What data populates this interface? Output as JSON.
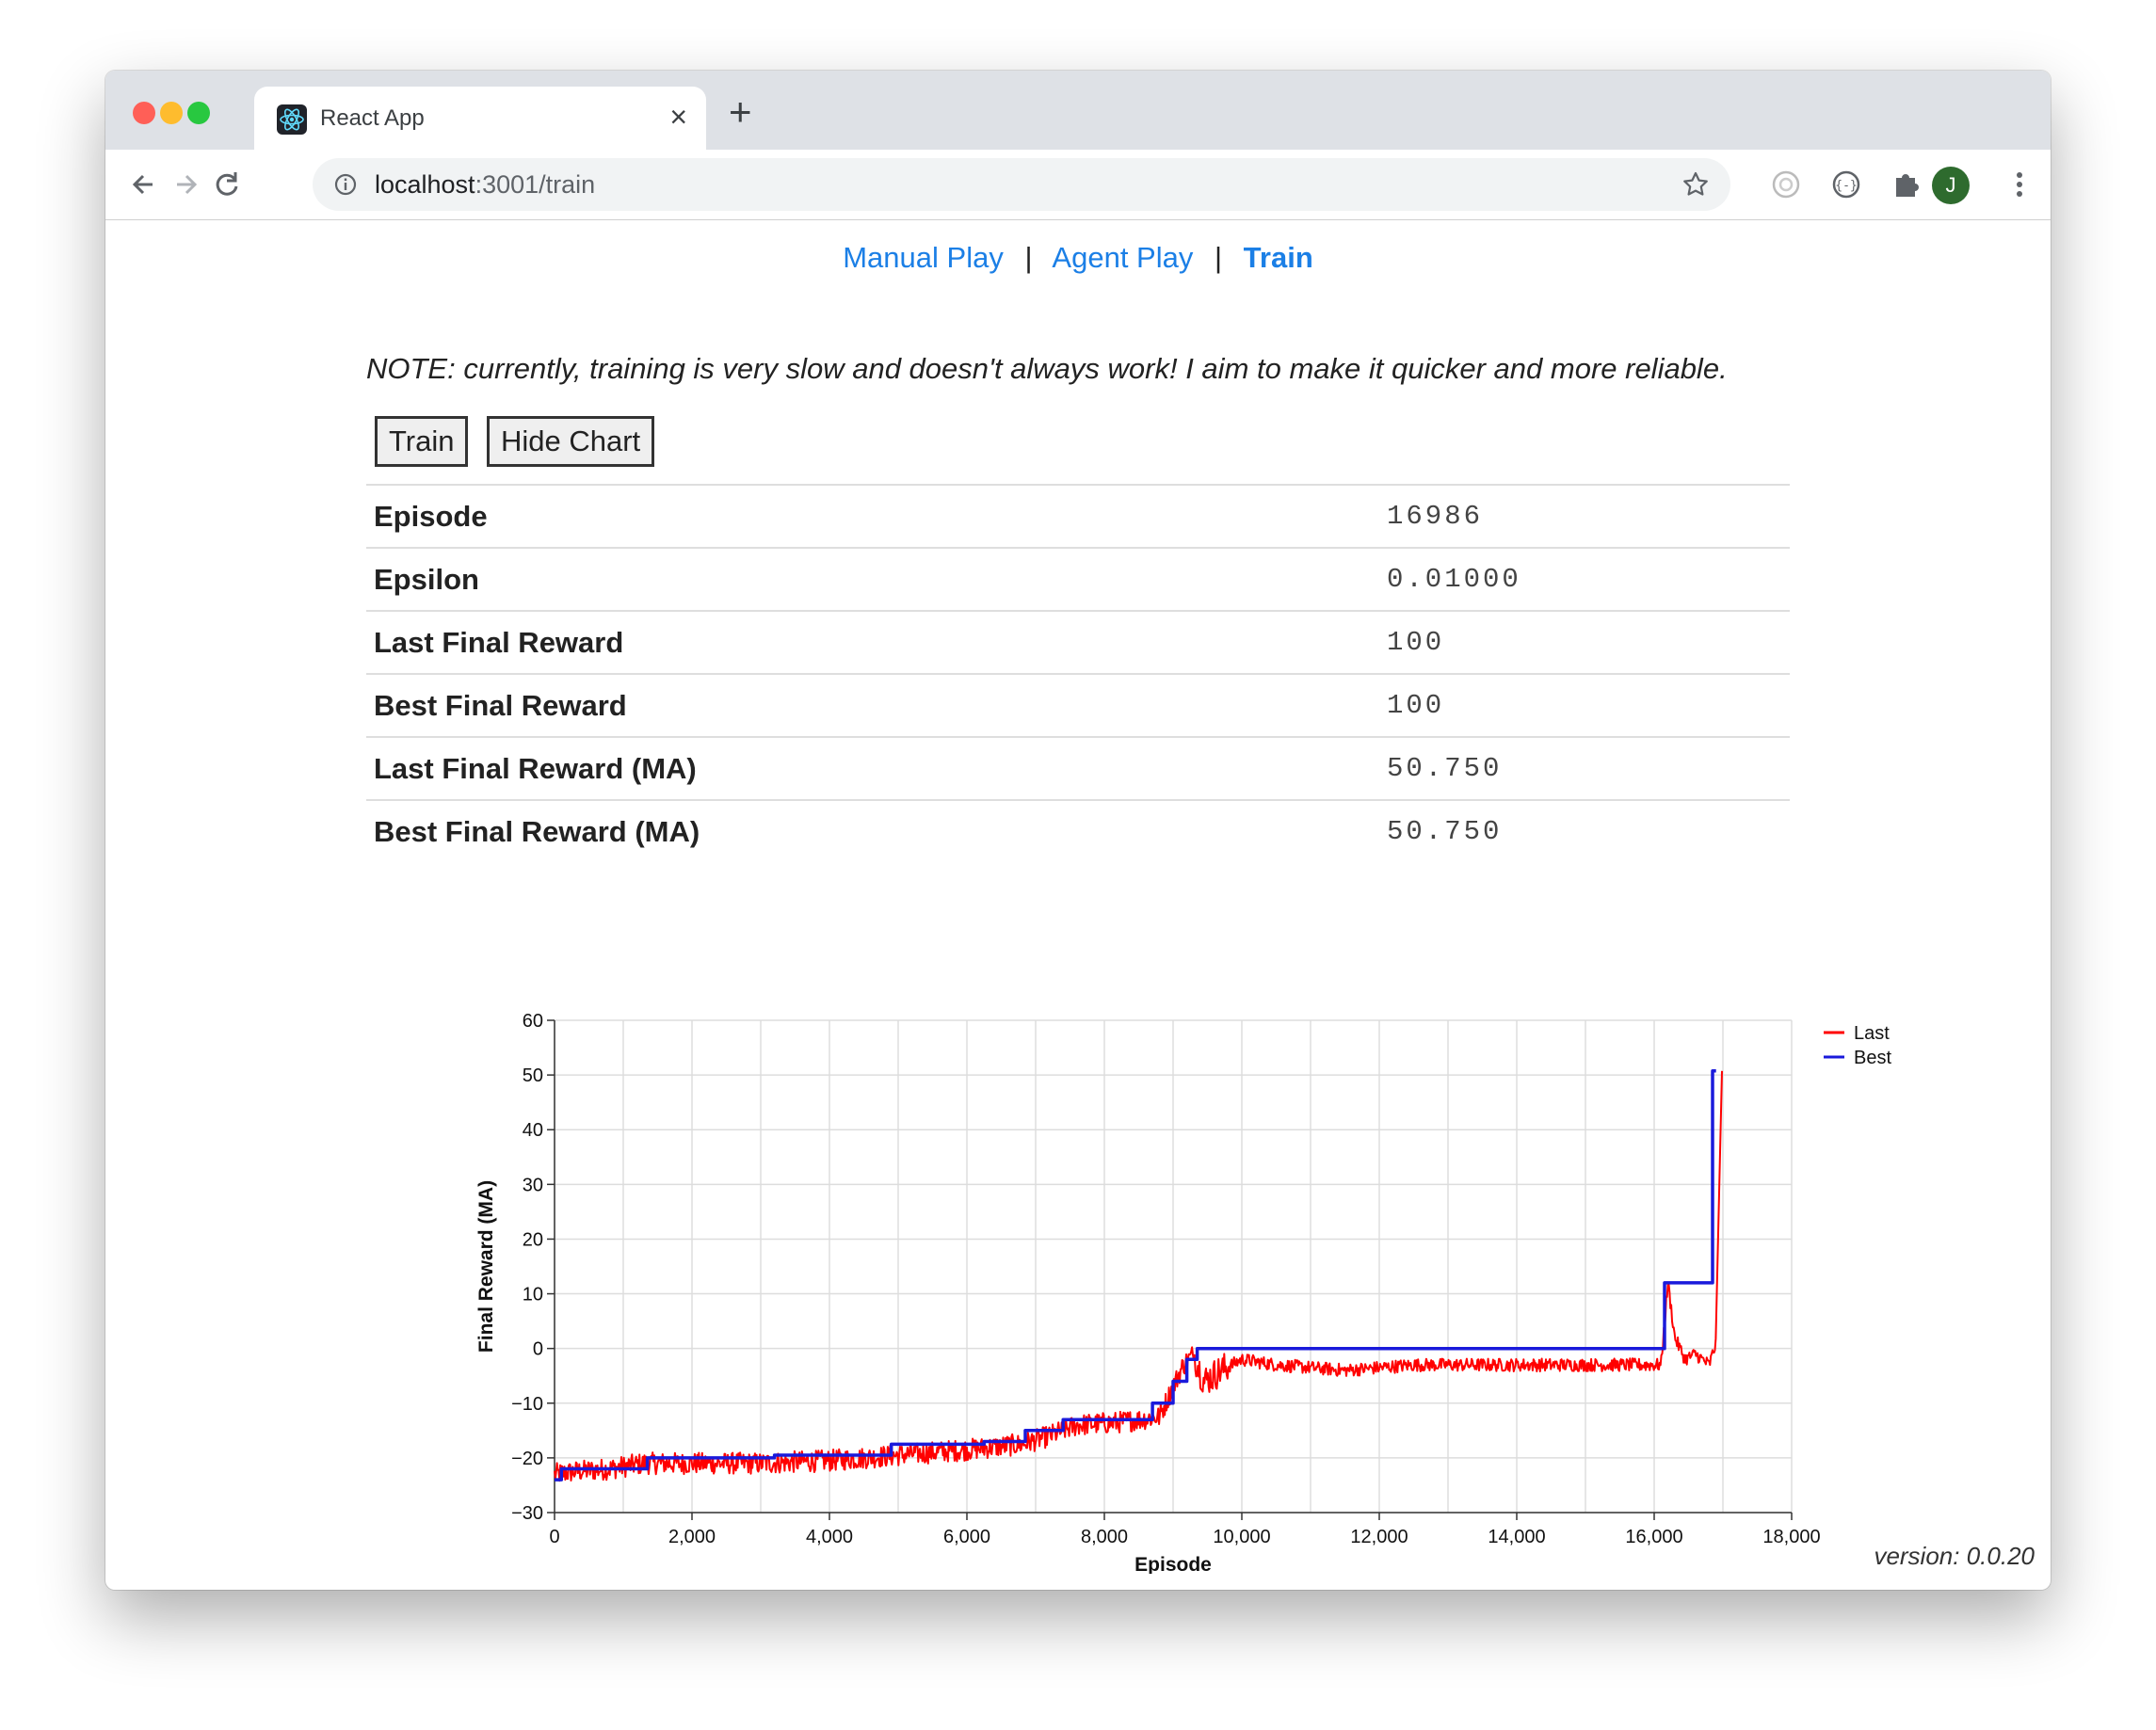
{
  "browser": {
    "tab_title": "React App",
    "url_host": "localhost",
    "url_rest": ":3001/train",
    "profile_initial": "J"
  },
  "nav": {
    "manual": "Manual Play",
    "agent": "Agent Play",
    "train": "Train",
    "separator": "|"
  },
  "note": "NOTE: currently, training is very slow and doesn't always work! I aim to make it quicker and more reliable.",
  "buttons": {
    "train": "Train",
    "hide_chart": "Hide Chart"
  },
  "stats": [
    {
      "label": "Episode",
      "value": "16986"
    },
    {
      "label": "Epsilon",
      "value": "0.01000"
    },
    {
      "label": "Last Final Reward",
      "value": "100"
    },
    {
      "label": "Best Final Reward",
      "value": "100"
    },
    {
      "label": "Last Final Reward (MA)",
      "value": "50.750"
    },
    {
      "label": "Best Final Reward (MA)",
      "value": "50.750"
    }
  ],
  "chart_data": {
    "type": "line",
    "xlabel": "Episode",
    "ylabel": "Final Reward (MA)",
    "xlim": [
      0,
      18000
    ],
    "ylim": [
      -30,
      60
    ],
    "xticks": [
      "0",
      "2,000",
      "4,000",
      "6,000",
      "8,000",
      "10,000",
      "12,000",
      "14,000",
      "16,000",
      "18,000"
    ],
    "yticks": [
      "60",
      "50",
      "40",
      "30",
      "20",
      "10",
      "0",
      "−10",
      "−20",
      "−30"
    ],
    "grid": true,
    "legend": "top-right",
    "series": [
      {
        "name": "Last",
        "color": "#ff0000",
        "x": [
          0,
          300,
          800,
          1300,
          2000,
          3000,
          4000,
          5000,
          6000,
          6800,
          7200,
          7600,
          8200,
          8800,
          9000,
          9150,
          9300,
          9450,
          9700,
          10000,
          10500,
          11500,
          12500,
          13500,
          14500,
          15500,
          16100,
          16200,
          16300,
          16450,
          16600,
          16700,
          16800,
          16900,
          16986
        ],
        "y": [
          -23,
          -22.5,
          -22,
          -21,
          -21,
          -21,
          -20.5,
          -19.5,
          -18.5,
          -17.5,
          -16,
          -14,
          -13.5,
          -12.5,
          -7,
          -3,
          -1,
          -6,
          -4,
          -2,
          -3,
          -4,
          -3,
          -3,
          -3,
          -3,
          -3,
          12,
          2,
          -2,
          -1,
          -2,
          -3,
          1,
          50.75
        ]
      },
      {
        "name": "Best",
        "color": "#1a1adb",
        "x": [
          0,
          100,
          100,
          1350,
          1350,
          3200,
          3200,
          4900,
          4900,
          6250,
          6250,
          6850,
          6850,
          7400,
          7400,
          8700,
          8700,
          9000,
          9000,
          9200,
          9200,
          9350,
          9350,
          16150,
          16150,
          16850,
          16850,
          16900
        ],
        "y": [
          -24,
          -24,
          -22,
          -22,
          -20,
          -20,
          -19.5,
          -19.5,
          -17.5,
          -17.5,
          -17,
          -17,
          -15,
          -15,
          -13,
          -13,
          -10,
          -10,
          -6,
          -6,
          -2,
          -2,
          0,
          0,
          12,
          12,
          50.75,
          50.75
        ]
      }
    ]
  },
  "version": "version: 0.0.20"
}
